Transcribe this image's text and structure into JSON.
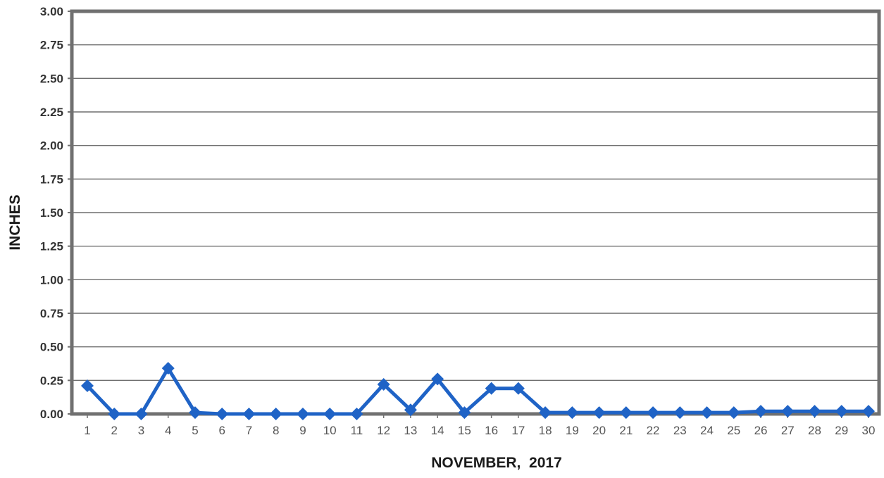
{
  "chart_data": {
    "type": "line",
    "title": "",
    "xlabel": "NOVEMBER,  2017",
    "ylabel": "INCHES",
    "ylim": [
      0,
      3.0
    ],
    "yticks": [
      "0.00",
      "0.25",
      "0.50",
      "0.75",
      "1.00",
      "1.25",
      "1.50",
      "1.75",
      "2.00",
      "2.25",
      "2.50",
      "2.75",
      "3.00"
    ],
    "grid": true,
    "categories": [
      "1",
      "2",
      "3",
      "4",
      "5",
      "6",
      "7",
      "8",
      "9",
      "10",
      "11",
      "12",
      "13",
      "14",
      "15",
      "16",
      "17",
      "18",
      "19",
      "20",
      "21",
      "22",
      "23",
      "24",
      "25",
      "26",
      "27",
      "28",
      "29",
      "30"
    ],
    "series": [
      {
        "values": [
          0.21,
          0.0,
          0.0,
          0.34,
          0.01,
          0.0,
          0.0,
          0.0,
          0.0,
          0.0,
          0.0,
          0.22,
          0.03,
          0.26,
          0.01,
          0.19,
          0.19,
          0.01,
          0.01,
          0.01,
          0.01,
          0.01,
          0.01,
          0.01,
          0.01,
          0.02,
          0.02,
          0.02,
          0.02,
          0.02
        ],
        "color": "#1f63c6",
        "marker": "diamond"
      }
    ]
  }
}
